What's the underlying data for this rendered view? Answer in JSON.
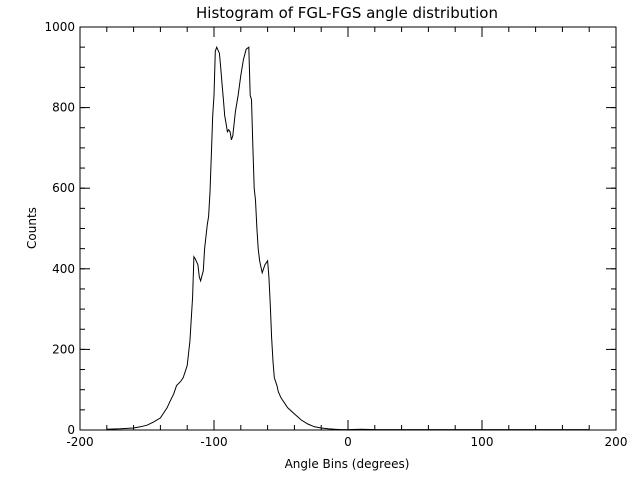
{
  "chart_data": {
    "type": "line",
    "title": "Histogram of FGL-FGS angle distribution",
    "xlabel": "Angle Bins (degrees)",
    "ylabel": "Counts",
    "xlim": [
      -200,
      200
    ],
    "ylim": [
      0,
      1000
    ],
    "x_ticks": [
      -200,
      -100,
      0,
      100,
      200
    ],
    "y_ticks": [
      0,
      200,
      400,
      600,
      800,
      1000
    ],
    "x_minor_step": 20,
    "y_minor_step": 50,
    "grid": false,
    "line_color": "#000000",
    "series": [
      {
        "name": "counts",
        "x": [
          -180,
          -170,
          -160,
          -155,
          -150,
          -145,
          -140,
          -137,
          -135,
          -133,
          -130,
          -128,
          -125,
          -123,
          -120,
          -118,
          -116,
          -115,
          -114,
          -112,
          -111,
          -110,
          -108,
          -107,
          -105,
          -104,
          -103,
          -102,
          -101,
          -100,
          -99,
          -98,
          -96,
          -95,
          -94,
          -93,
          -92,
          -91,
          -90,
          -89,
          -88,
          -87,
          -86,
          -85,
          -84,
          -82,
          -80,
          -78,
          -76,
          -74,
          -73,
          -72,
          -71,
          -70,
          -69,
          -68,
          -67,
          -66,
          -64,
          -62,
          -60,
          -59,
          -58,
          -57,
          -56,
          -55,
          -53,
          -52,
          -50,
          -45,
          -40,
          -35,
          -30,
          -25,
          -20,
          -15,
          -10,
          -5,
          0,
          10,
          20,
          40,
          60,
          80,
          100,
          120,
          140,
          160,
          180
        ],
        "values": [
          2,
          3,
          5,
          8,
          12,
          20,
          30,
          45,
          55,
          70,
          90,
          110,
          120,
          130,
          160,
          220,
          330,
          430,
          425,
          410,
          380,
          370,
          395,
          450,
          510,
          530,
          590,
          680,
          780,
          830,
          940,
          950,
          935,
          900,
          860,
          820,
          780,
          760,
          740,
          745,
          740,
          720,
          730,
          760,
          790,
          830,
          880,
          920,
          945,
          950,
          830,
          820,
          700,
          600,
          570,
          500,
          450,
          420,
          390,
          410,
          420,
          380,
          310,
          230,
          170,
          130,
          110,
          95,
          80,
          55,
          40,
          25,
          15,
          8,
          5,
          3,
          2,
          1,
          1,
          2,
          1,
          1,
          1,
          1,
          1,
          1,
          1,
          1,
          1
        ]
      }
    ]
  }
}
